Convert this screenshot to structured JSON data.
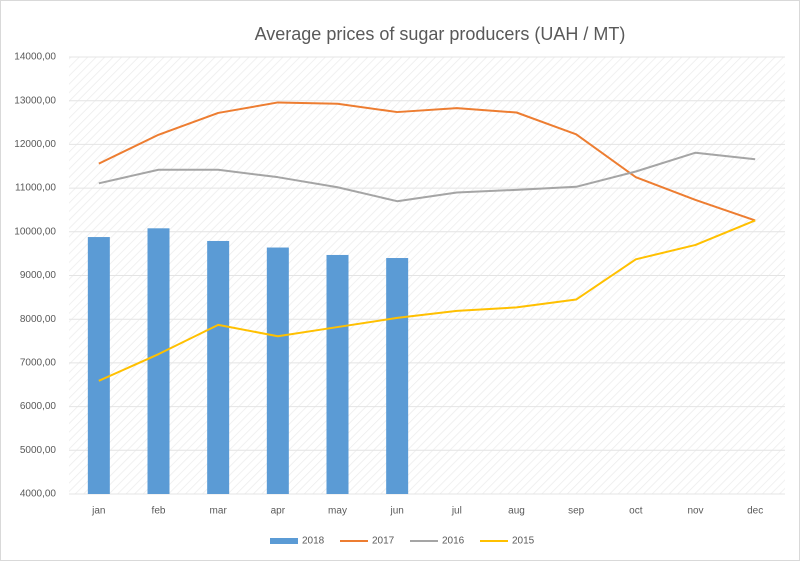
{
  "chart_data": {
    "type": "combo",
    "title": "Average prices of sugar producers (UAH / MT)",
    "categories": [
      "jan",
      "feb",
      "mar",
      "apr",
      "may",
      "jun",
      "jul",
      "aug",
      "sep",
      "oct",
      "nov",
      "dec"
    ],
    "series": [
      {
        "name": "2018",
        "type": "bar",
        "color": "#5b9bd5",
        "values": [
          9880,
          10080,
          9790,
          9640,
          9470,
          9400,
          null,
          null,
          null,
          null,
          null,
          null
        ]
      },
      {
        "name": "2017",
        "type": "line",
        "color": "#ed7d31",
        "values": [
          11560,
          12220,
          12720,
          12960,
          12930,
          12740,
          12830,
          12730,
          12230,
          11250,
          10730,
          10260
        ]
      },
      {
        "name": "2016",
        "type": "line",
        "color": "#a5a5a5",
        "values": [
          11110,
          11420,
          11420,
          11250,
          11020,
          10700,
          10900,
          10960,
          11030,
          11380,
          11810,
          11660
        ]
      },
      {
        "name": "2015",
        "type": "line",
        "color": "#ffc000",
        "values": [
          6590,
          7200,
          7870,
          7610,
          7820,
          8030,
          8190,
          8270,
          8450,
          9370,
          9700,
          10260
        ]
      }
    ],
    "ylim": [
      4000,
      14000
    ],
    "yticks": [
      {
        "value": 4000,
        "label": "4000,00"
      },
      {
        "value": 5000,
        "label": "5000,00"
      },
      {
        "value": 6000,
        "label": "6000,00"
      },
      {
        "value": 7000,
        "label": "7000,00"
      },
      {
        "value": 8000,
        "label": "8000,00"
      },
      {
        "value": 9000,
        "label": "9000,00"
      },
      {
        "value": 10000,
        "label": "10000,00"
      },
      {
        "value": 11000,
        "label": "11000,00"
      },
      {
        "value": 12000,
        "label": "12000,00"
      },
      {
        "value": 13000,
        "label": "13000,00"
      },
      {
        "value": 14000,
        "label": "14000,00"
      }
    ],
    "grid": true,
    "legend": "bottom"
  }
}
